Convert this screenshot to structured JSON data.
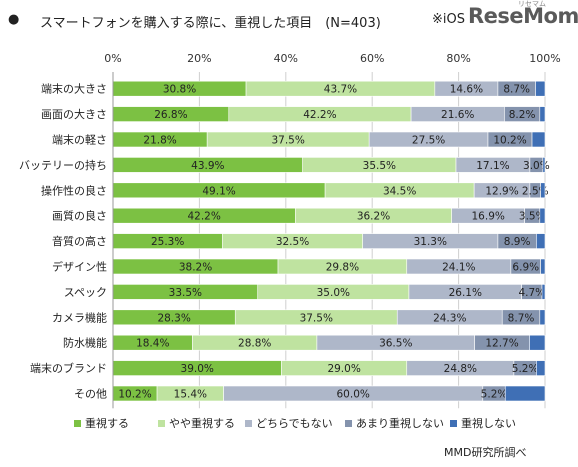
{
  "header": {
    "bullet": "●",
    "title": "スマートフォンを購入する際に、重視した項目　(N=403)",
    "note": "※iOS",
    "logo_kana": "リセマム",
    "logo": "ReseMom"
  },
  "source": "MMD研究所調べ",
  "colors": {
    "series": [
      "#7cc143",
      "#bfe3a0",
      "#aeb7c9",
      "#8493ad",
      "#3f6fb5"
    ],
    "grid": "#cfcfcf"
  },
  "chart_data": {
    "type": "bar",
    "orientation": "horizontal",
    "stacked": true,
    "percent_stacked": true,
    "xlim": [
      0,
      100
    ],
    "x_ticks": [
      "0%",
      "20%",
      "40%",
      "60%",
      "80%",
      "100%"
    ],
    "grid": true,
    "legend_position": "bottom",
    "categories": [
      "端末の大きさ",
      "画面の大きさ",
      "端末の軽さ",
      "バッテリーの持ち",
      "操作性の良さ",
      "画質の良さ",
      "音質の高さ",
      "デザイン性",
      "スペック",
      "カメラ機能",
      "防水機能",
      "端末のブランド",
      "その他"
    ],
    "series": [
      {
        "name": "重視する",
        "values": [
          30.8,
          26.8,
          21.8,
          43.9,
          49.1,
          42.2,
          25.3,
          38.2,
          33.5,
          28.3,
          18.4,
          39.0,
          10.2
        ],
        "labels": [
          "30.8%",
          "26.8%",
          "21.8%",
          "43.9%",
          "49.1%",
          "42.2%",
          "25.3%",
          "38.2%",
          "33.5%",
          "28.3%",
          "18.4%",
          "39.0%",
          "10.2%"
        ]
      },
      {
        "name": "やや重視する",
        "values": [
          43.7,
          42.2,
          37.5,
          35.5,
          34.5,
          36.2,
          32.5,
          29.8,
          35.0,
          37.5,
          28.8,
          29.0,
          15.4
        ],
        "labels": [
          "43.7%",
          "42.2%",
          "37.5%",
          "35.5%",
          "34.5%",
          "36.2%",
          "32.5%",
          "29.8%",
          "35.0%",
          "37.5%",
          "28.8%",
          "29.0%",
          "15.4%"
        ]
      },
      {
        "name": "どちらでもない",
        "values": [
          14.6,
          21.6,
          27.5,
          17.1,
          12.9,
          16.9,
          31.3,
          24.1,
          26.1,
          24.3,
          36.5,
          24.8,
          60.0
        ],
        "labels": [
          "14.6%",
          "21.6%",
          "27.5%",
          "17.1%",
          "12.9%",
          "16.9%",
          "31.3%",
          "24.1%",
          "26.1%",
          "24.3%",
          "36.5%",
          "24.8%",
          "60.0%"
        ]
      },
      {
        "name": "あまり重視しない",
        "values": [
          8.7,
          8.2,
          10.2,
          3.0,
          2.5,
          3.5,
          8.9,
          6.9,
          4.7,
          8.7,
          12.7,
          5.2,
          5.2
        ],
        "labels": [
          "8.7%",
          "8.2%",
          "10.2%",
          "3.0%",
          "2.5%",
          "3.5%",
          "8.9%",
          "6.9%",
          "4.7%",
          "8.7%",
          "12.7%",
          "5.2%",
          "5.2%"
        ]
      },
      {
        "name": "重視しない",
        "values": [
          2.2,
          1.2,
          3.0,
          0.5,
          1.0,
          1.2,
          2.0,
          1.0,
          0.7,
          1.2,
          3.6,
          2.0,
          9.2
        ],
        "labels": [
          "",
          "",
          "",
          "",
          "",
          "",
          "",
          "",
          "",
          "",
          "",
          "",
          ""
        ]
      }
    ]
  }
}
